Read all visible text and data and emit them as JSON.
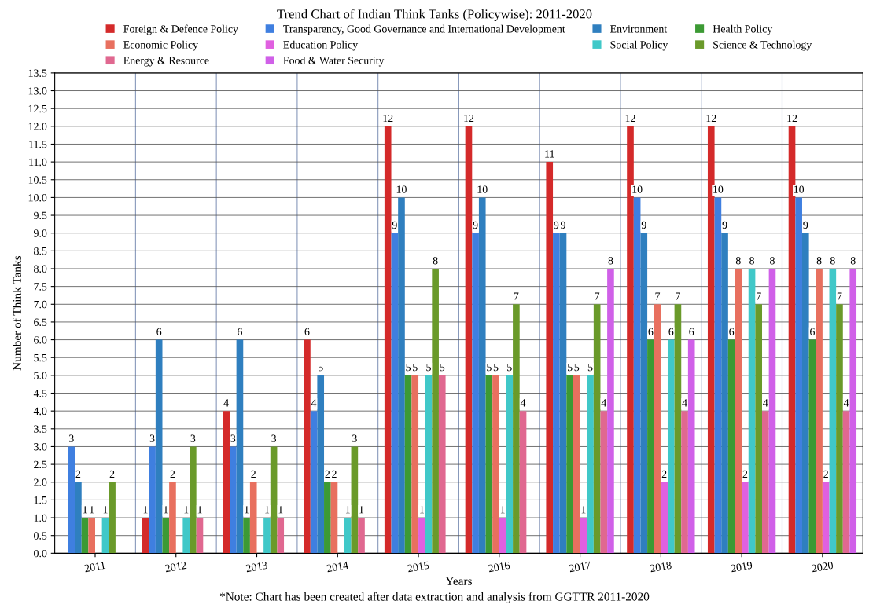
{
  "chart_data": {
    "type": "bar",
    "title": "Trend Chart of Indian Think Tanks (Policywise): 2011-2020",
    "xlabel": "Years",
    "ylabel": "Number of Think Tanks",
    "categories": [
      "2011",
      "2012",
      "2013",
      "2014",
      "2015",
      "2016",
      "2017",
      "2018",
      "2019",
      "2020"
    ],
    "series": [
      {
        "name": "Foreign & Defence Policy",
        "color": "#d42a2a",
        "values": [
          0,
          1,
          4,
          6,
          12,
          12,
          11,
          12,
          12,
          12
        ],
        "value_labels": [
          null,
          "1",
          "4",
          "6",
          "12",
          "12",
          "11",
          "12",
          "12",
          "12"
        ]
      },
      {
        "name": "Transparency, Good Governance and International Development",
        "color": "#3f7fe0",
        "values": [
          3,
          3,
          3,
          4,
          9,
          9,
          9,
          10,
          10,
          10
        ],
        "value_labels": [
          "3",
          "3",
          "3",
          "4",
          "9",
          "9",
          "9",
          "10",
          "10",
          "10"
        ]
      },
      {
        "name": "Environment",
        "color": "#2f7fbf",
        "values": [
          2,
          6,
          6,
          5,
          10,
          10,
          9,
          9,
          9,
          9
        ],
        "value_labels": [
          "2",
          "6",
          "6",
          "5",
          "10",
          "10",
          "9",
          "9",
          "9",
          "9"
        ]
      },
      {
        "name": "Health Policy",
        "color": "#3c9a34",
        "values": [
          1,
          1,
          1,
          2,
          5,
          5,
          5,
          6,
          6,
          6
        ],
        "value_labels": [
          "1",
          "1",
          "1",
          "2",
          "5",
          "5",
          "5",
          "6",
          "6",
          "6"
        ]
      },
      {
        "name": "Economic Policy",
        "color": "#e8705f",
        "values": [
          1,
          2,
          2,
          2,
          5,
          5,
          5,
          7,
          8,
          8
        ],
        "value_labels": [
          "1",
          "2",
          "2",
          "2",
          "5",
          "5",
          "5",
          "7",
          "8",
          "8"
        ]
      },
      {
        "name": "Education Policy",
        "color": "#e060e0",
        "values": [
          0,
          0,
          0,
          0,
          1,
          1,
          1,
          2,
          2,
          2
        ],
        "value_labels": [
          null,
          null,
          null,
          null,
          "1",
          "1",
          "1",
          "2",
          "2",
          "2"
        ]
      },
      {
        "name": "Social Policy",
        "color": "#40c8c8",
        "values": [
          1,
          1,
          1,
          1,
          5,
          5,
          5,
          6,
          8,
          8
        ],
        "value_labels": [
          "1",
          "1",
          "1",
          "1",
          "5",
          "5",
          "5",
          "6",
          "8",
          "8"
        ]
      },
      {
        "name": "Science & Technology",
        "color": "#6a9a2a",
        "values": [
          2,
          3,
          3,
          3,
          8,
          7,
          7,
          7,
          7,
          7
        ],
        "value_labels": [
          "2",
          "3",
          "3",
          "3",
          "8",
          "7",
          "7",
          "7",
          "7",
          "7"
        ]
      },
      {
        "name": "Energy & Resource",
        "color": "#e06890",
        "values": [
          0,
          1,
          1,
          1,
          5,
          4,
          4,
          4,
          4,
          4
        ],
        "value_labels": [
          null,
          "1",
          "1",
          "1",
          "5",
          "4",
          "4",
          "4",
          "4",
          "4"
        ]
      },
      {
        "name": "Food & Water Security",
        "color": "#d060e8",
        "values": [
          0,
          0,
          0,
          0,
          0,
          0,
          8,
          6,
          8,
          8
        ],
        "value_labels": [
          null,
          null,
          null,
          null,
          null,
          null,
          "8",
          "6",
          "8",
          "8"
        ]
      }
    ],
    "ylim": [
      0,
      13.5
    ],
    "yticks": [
      {
        "value": 0,
        "label": "0.0"
      },
      {
        "value": 0.5,
        "label": "0.5"
      },
      {
        "value": 1,
        "label": "1.0"
      },
      {
        "value": 1.5,
        "label": "1.5"
      },
      {
        "value": 2,
        "label": "2.0"
      },
      {
        "value": 2.5,
        "label": "2.5"
      },
      {
        "value": 3,
        "label": "3.0"
      },
      {
        "value": 3.5,
        "label": "3.5"
      },
      {
        "value": 4,
        "label": "4.0"
      },
      {
        "value": 4.5,
        "label": "4.5"
      },
      {
        "value": 5,
        "label": "5.0"
      },
      {
        "value": 5.5,
        "label": "5.5"
      },
      {
        "value": 6,
        "label": "6.0"
      },
      {
        "value": 6.5,
        "label": "6.5"
      },
      {
        "value": 7,
        "label": "7.0"
      },
      {
        "value": 7.5,
        "label": "7.5"
      },
      {
        "value": 8,
        "label": "8.0"
      },
      {
        "value": 8.5,
        "label": "8.5"
      },
      {
        "value": 9,
        "label": "9.0"
      },
      {
        "value": 9.5,
        "label": "9.5"
      },
      {
        "value": 10,
        "label": "10.0"
      },
      {
        "value": 10.5,
        "label": "10.5"
      },
      {
        "value": 11,
        "label": "11.0"
      },
      {
        "value": 11.5,
        "label": "11.5"
      },
      {
        "value": 12,
        "label": "12.0"
      },
      {
        "value": 12.5,
        "label": "12.5"
      },
      {
        "value": 13,
        "label": "13.0"
      },
      {
        "value": 13.5,
        "label": "13.5"
      }
    ],
    "grid": true,
    "legend": "top",
    "annotations": [
      "*Note: Chart has been created after data extraction and analysis from GGTTR 2011-2020"
    ]
  }
}
